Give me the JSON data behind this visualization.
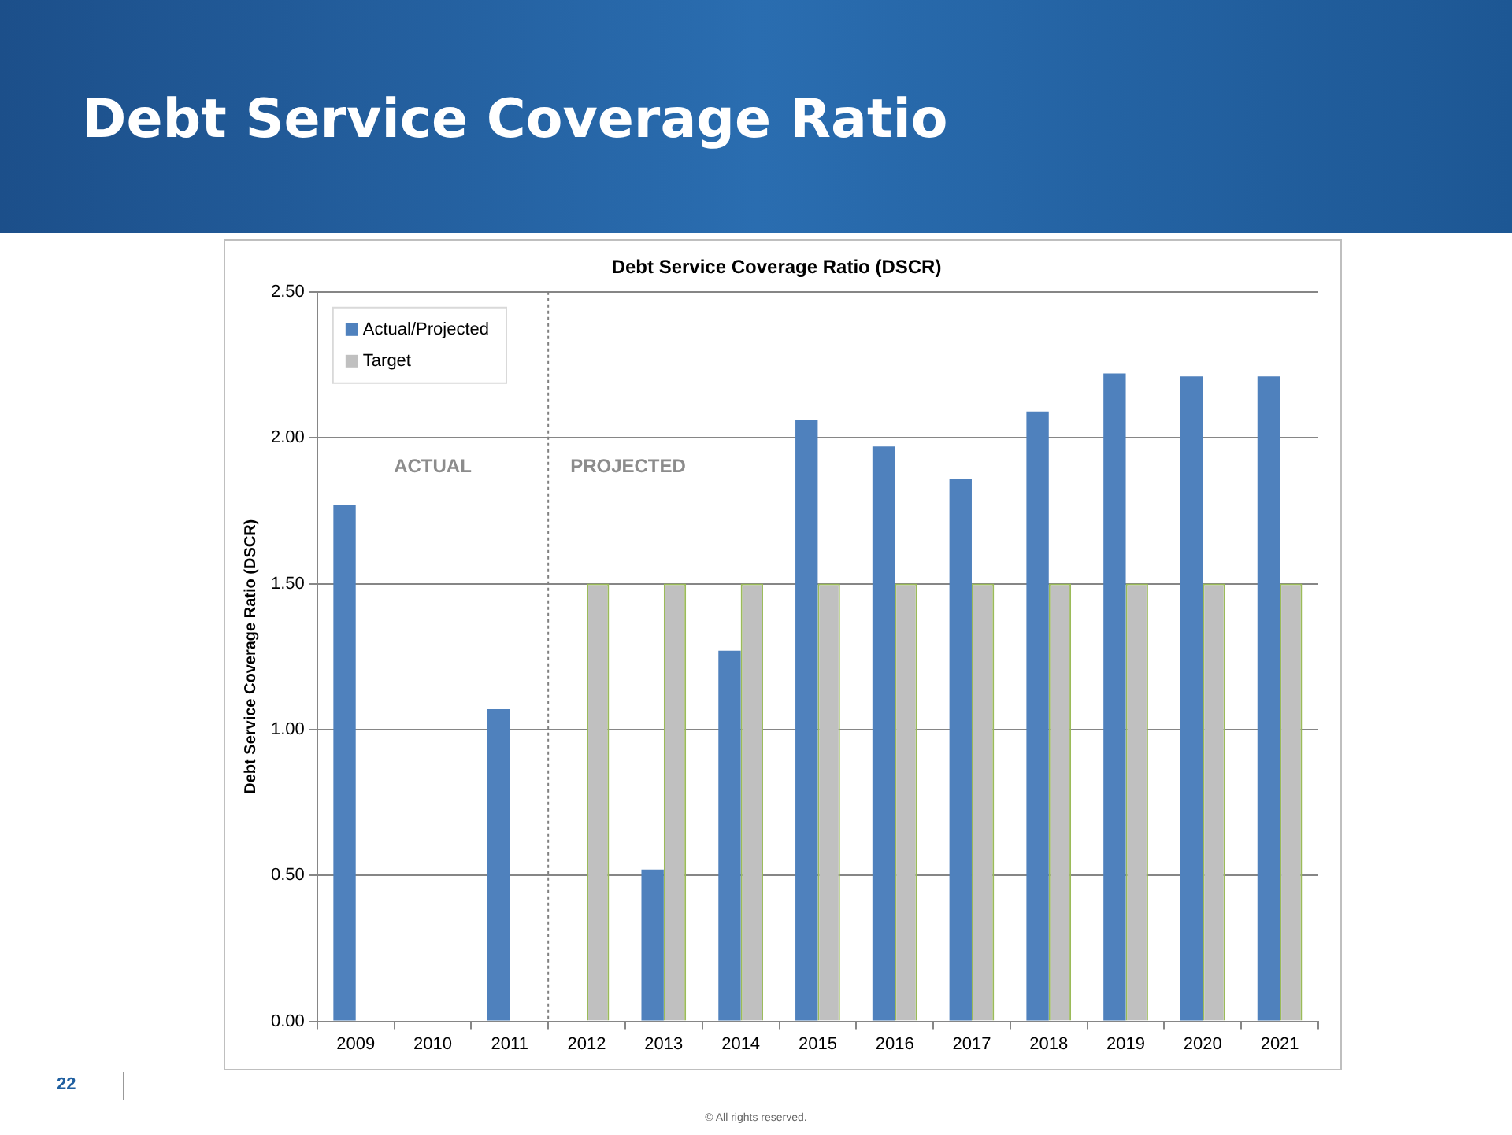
{
  "chart_data": {
    "type": "bar",
    "title": "Debt Service Coverage Ratio",
    "subtitle": "Debt Service Coverage Ratio (DSCR)",
    "ylabel": "Debt Service Coverage Ratio (DSCR)",
    "categories": [
      "2009",
      "2010",
      "2011",
      "2012",
      "2013",
      "2014",
      "2015",
      "2016",
      "2017",
      "2018",
      "2019",
      "2020",
      "2021"
    ],
    "series": [
      {
        "name": "Actual/Projected",
        "color": "#4f81bd",
        "values": [
          1.77,
          0,
          1.07,
          0,
          0.52,
          1.27,
          2.06,
          1.97,
          1.86,
          2.09,
          2.22,
          2.21,
          2.21
        ]
      },
      {
        "name": "Target",
        "color": "#c0c0c0",
        "values": [
          null,
          null,
          null,
          1.5,
          1.5,
          1.5,
          1.5,
          1.5,
          1.5,
          1.5,
          1.5,
          1.5,
          1.5
        ]
      }
    ],
    "ylim": [
      0,
      2.5
    ],
    "yticks": [
      {
        "value": 0,
        "label": "0.00"
      },
      {
        "value": 0.5,
        "label": "0.50"
      },
      {
        "value": 1,
        "label": "1.00"
      },
      {
        "value": 1.5,
        "label": "1.50"
      },
      {
        "value": 2,
        "label": "2.00"
      },
      {
        "value": 2.5,
        "label": "2.50"
      }
    ],
    "grid": "y",
    "legend": "top left",
    "ref_lines": [
      {
        "axis": "x",
        "value": "2012",
        "line_style": "dotted",
        "color": "#808080"
      }
    ],
    "annotations": [
      "ACTUAL",
      "PROJECTED",
      "22",
      "© All rights reserved."
    ]
  }
}
